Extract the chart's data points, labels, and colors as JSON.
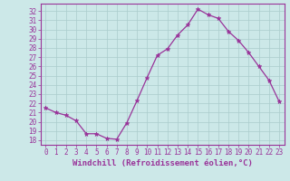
{
  "x": [
    0,
    1,
    2,
    3,
    4,
    5,
    6,
    7,
    8,
    9,
    10,
    11,
    12,
    13,
    14,
    15,
    16,
    17,
    18,
    19,
    20,
    21,
    22,
    23
  ],
  "y": [
    21.5,
    21.0,
    20.7,
    20.1,
    18.7,
    18.7,
    18.2,
    18.1,
    19.9,
    22.3,
    24.8,
    27.2,
    27.9,
    29.4,
    30.5,
    32.2,
    31.6,
    31.2,
    29.8,
    28.8,
    27.5,
    26.0,
    24.5,
    22.2
  ],
  "line_color": "#993399",
  "marker": "*",
  "marker_size": 3.5,
  "bg_color": "#cce8e8",
  "grid_color": "#aacccc",
  "ylabel_ticks": [
    18,
    19,
    20,
    21,
    22,
    23,
    24,
    25,
    26,
    27,
    28,
    29,
    30,
    31,
    32
  ],
  "xlabel_ticks": [
    0,
    1,
    2,
    3,
    4,
    5,
    6,
    7,
    8,
    9,
    10,
    11,
    12,
    13,
    14,
    15,
    16,
    17,
    18,
    19,
    20,
    21,
    22,
    23
  ],
  "xlabel_label": "Windchill (Refroidissement éolien,°C)",
  "ylim": [
    17.5,
    32.8
  ],
  "xlim": [
    -0.5,
    23.5
  ],
  "line_color_hex": "#993399",
  "tick_fontsize": 5.5,
  "xlabel_fontsize": 6.5
}
